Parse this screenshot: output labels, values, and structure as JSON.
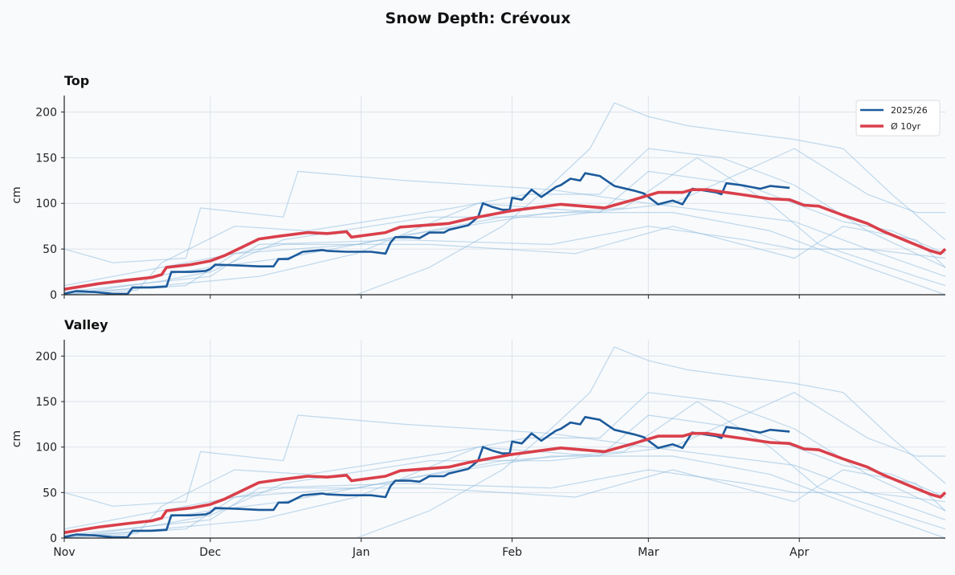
{
  "chart_data": {
    "type": "line",
    "title": "Snow Depth: Crévoux",
    "x_unit": "day of season from Nov 1",
    "xlim": [
      "Nov 1",
      "Apr 30"
    ],
    "x_tick_labels": [
      "Nov",
      "Dec",
      "Jan",
      "Feb",
      "Mar",
      "Apr"
    ],
    "x_tick_days": [
      0,
      30,
      61,
      92,
      120,
      151
    ],
    "ylabel": "cm",
    "ylim": [
      0,
      218
    ],
    "y_ticks": [
      0,
      50,
      100,
      150,
      200
    ],
    "grid": true,
    "legend_placement": "top-right",
    "panels": [
      {
        "title": "Top",
        "show_legend": true,
        "show_x_labels": false
      },
      {
        "title": "Valley",
        "show_legend": false,
        "show_x_labels": true
      }
    ],
    "colors": {
      "current": "#1c5a9b",
      "average": "#d93f4a",
      "history": "#8fbcdc"
    },
    "series": [
      {
        "name": "2025/26",
        "role": "current",
        "points": [
          [
            0,
            1
          ],
          [
            2.5,
            4
          ],
          [
            6,
            3
          ],
          [
            10,
            1
          ],
          [
            13,
            1
          ],
          [
            14,
            8
          ],
          [
            18,
            8
          ],
          [
            21,
            9
          ],
          [
            22,
            25
          ],
          [
            26,
            25
          ],
          [
            29,
            26
          ],
          [
            30,
            28
          ],
          [
            31,
            33
          ],
          [
            36,
            32
          ],
          [
            40,
            31
          ],
          [
            43,
            31
          ],
          [
            44,
            39
          ],
          [
            46,
            39
          ],
          [
            49,
            47
          ],
          [
            53,
            49
          ],
          [
            54,
            48
          ],
          [
            58,
            47
          ],
          [
            63,
            47
          ],
          [
            66,
            45
          ],
          [
            67,
            57
          ],
          [
            68,
            63
          ],
          [
            71,
            63
          ],
          [
            73,
            62
          ],
          [
            75,
            68
          ],
          [
            78,
            68
          ],
          [
            79,
            71
          ],
          [
            83,
            76
          ],
          [
            85,
            85
          ],
          [
            86,
            100
          ],
          [
            88,
            96
          ],
          [
            90,
            93
          ],
          [
            91.5,
            93
          ],
          [
            92,
            106
          ],
          [
            94,
            104
          ],
          [
            96,
            115
          ],
          [
            98,
            107
          ],
          [
            101,
            118
          ],
          [
            102,
            120
          ],
          [
            104,
            127
          ],
          [
            106,
            125
          ],
          [
            107,
            133
          ],
          [
            110,
            130
          ],
          [
            113,
            119
          ],
          [
            117,
            114
          ],
          [
            119,
            111
          ],
          [
            122,
            99
          ],
          [
            125,
            103
          ],
          [
            127,
            99
          ],
          [
            129,
            116
          ],
          [
            134,
            112
          ],
          [
            135,
            110
          ],
          [
            136,
            122
          ],
          [
            139,
            120
          ],
          [
            143,
            116
          ],
          [
            145,
            119
          ],
          [
            149,
            117
          ]
        ]
      },
      {
        "name": "Ø 10yr",
        "role": "average",
        "points": [
          [
            0,
            6
          ],
          [
            7,
            12
          ],
          [
            13,
            16
          ],
          [
            18,
            19
          ],
          [
            20,
            22
          ],
          [
            21,
            30
          ],
          [
            26,
            33
          ],
          [
            30,
            37
          ],
          [
            33,
            43
          ],
          [
            40,
            61
          ],
          [
            44,
            64
          ],
          [
            50,
            68
          ],
          [
            54,
            67
          ],
          [
            58,
            69
          ],
          [
            59,
            63
          ],
          [
            66,
            68
          ],
          [
            69,
            74
          ],
          [
            79,
            78
          ],
          [
            83,
            83
          ],
          [
            87,
            87
          ],
          [
            92,
            92
          ],
          [
            102,
            99
          ],
          [
            111,
            95
          ],
          [
            117,
            104
          ],
          [
            122,
            112
          ],
          [
            127,
            112
          ],
          [
            129,
            115
          ],
          [
            132,
            115
          ],
          [
            140,
            109
          ],
          [
            145,
            105
          ],
          [
            149,
            104
          ],
          [
            152,
            98
          ],
          [
            155,
            97
          ],
          [
            160,
            87
          ],
          [
            165,
            78
          ],
          [
            168,
            70
          ],
          [
            173,
            59
          ],
          [
            178,
            48
          ],
          [
            180,
            45
          ],
          [
            181,
            50
          ]
        ]
      },
      {
        "role": "history",
        "points": [
          [
            60,
            0
          ],
          [
            75,
            30
          ],
          [
            90,
            75
          ],
          [
            100,
            120
          ],
          [
            108,
            160
          ],
          [
            113,
            210
          ],
          [
            120,
            195
          ],
          [
            128,
            185
          ],
          [
            135,
            180
          ],
          [
            150,
            170
          ],
          [
            160,
            160
          ],
          [
            170,
            110
          ],
          [
            181,
            60
          ]
        ]
      },
      {
        "role": "history",
        "points": [
          [
            0,
            50
          ],
          [
            10,
            35
          ],
          [
            25,
            40
          ],
          [
            28,
            95
          ],
          [
            45,
            85
          ],
          [
            48,
            135
          ],
          [
            70,
            125
          ],
          [
            100,
            115
          ],
          [
            120,
            100
          ],
          [
            150,
            80
          ],
          [
            165,
            50
          ],
          [
            181,
            20
          ]
        ]
      },
      {
        "role": "history",
        "points": [
          [
            0,
            0
          ],
          [
            15,
            5
          ],
          [
            20,
            35
          ],
          [
            35,
            75
          ],
          [
            50,
            70
          ],
          [
            80,
            95
          ],
          [
            95,
            110
          ],
          [
            110,
            110
          ],
          [
            120,
            160
          ],
          [
            135,
            150
          ],
          [
            150,
            120
          ],
          [
            165,
            70
          ],
          [
            181,
            30
          ]
        ]
      },
      {
        "role": "history",
        "points": [
          [
            0,
            2
          ],
          [
            25,
            10
          ],
          [
            35,
            45
          ],
          [
            60,
            55
          ],
          [
            90,
            85
          ],
          [
            115,
            95
          ],
          [
            130,
            150
          ],
          [
            145,
            100
          ],
          [
            155,
            55
          ],
          [
            175,
            20
          ],
          [
            181,
            10
          ]
        ]
      },
      {
        "role": "history",
        "points": [
          [
            0,
            3
          ],
          [
            30,
            20
          ],
          [
            40,
            55
          ],
          [
            70,
            60
          ],
          [
            100,
            55
          ],
          [
            120,
            75
          ],
          [
            140,
            60
          ],
          [
            150,
            50
          ],
          [
            165,
            50
          ],
          [
            181,
            40
          ]
        ]
      },
      {
        "role": "history",
        "points": [
          [
            0,
            0
          ],
          [
            20,
            15
          ],
          [
            30,
            25
          ],
          [
            45,
            60
          ],
          [
            75,
            85
          ],
          [
            100,
            85
          ],
          [
            125,
            100
          ],
          [
            150,
            160
          ],
          [
            165,
            110
          ],
          [
            175,
            90
          ],
          [
            181,
            90
          ]
        ]
      },
      {
        "role": "history",
        "points": [
          [
            0,
            5
          ],
          [
            30,
            30
          ],
          [
            45,
            40
          ],
          [
            70,
            65
          ],
          [
            100,
            90
          ],
          [
            125,
            90
          ],
          [
            145,
            70
          ],
          [
            165,
            30
          ],
          [
            181,
            0
          ]
        ]
      },
      {
        "role": "history",
        "points": [
          [
            0,
            0
          ],
          [
            40,
            20
          ],
          [
            60,
            45
          ],
          [
            85,
            100
          ],
          [
            110,
            90
          ],
          [
            120,
            135
          ],
          [
            140,
            120
          ],
          [
            160,
            80
          ],
          [
            170,
            70
          ],
          [
            181,
            45
          ]
        ]
      },
      {
        "role": "history",
        "points": [
          [
            0,
            10
          ],
          [
            25,
            35
          ],
          [
            45,
            55
          ],
          [
            75,
            55
          ],
          [
            105,
            45
          ],
          [
            125,
            75
          ],
          [
            150,
            40
          ],
          [
            160,
            75
          ],
          [
            175,
            60
          ],
          [
            181,
            30
          ]
        ]
      }
    ]
  }
}
